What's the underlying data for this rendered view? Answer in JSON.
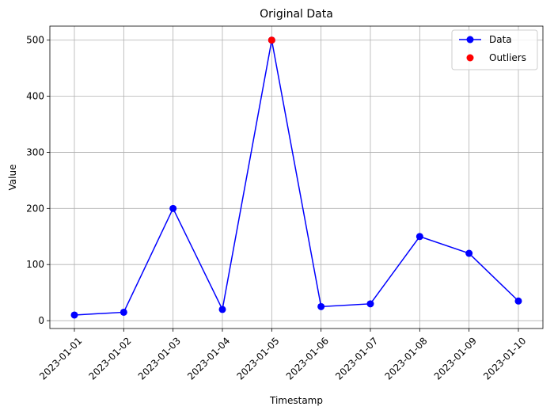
{
  "chart_data": {
    "type": "line",
    "title": "Original Data",
    "xlabel": "Timestamp",
    "ylabel": "Value",
    "categories": [
      "2023-01-01",
      "2023-01-02",
      "2023-01-03",
      "2023-01-04",
      "2023-01-05",
      "2023-01-06",
      "2023-01-07",
      "2023-01-08",
      "2023-01-09",
      "2023-01-10"
    ],
    "series": [
      {
        "name": "Data",
        "color": "#0000ff",
        "marker": "circle",
        "values": [
          10,
          15,
          200,
          20,
          500,
          25,
          30,
          150,
          120,
          35
        ]
      }
    ],
    "outliers": {
      "name": "Outliers",
      "color": "#ff0000",
      "points": [
        {
          "category": "2023-01-05",
          "value": 500
        }
      ]
    },
    "ylim": [
      -14,
      525
    ],
    "yticks": [
      0,
      100,
      200,
      300,
      400,
      500
    ],
    "grid": true,
    "legend_position": "top-right"
  }
}
